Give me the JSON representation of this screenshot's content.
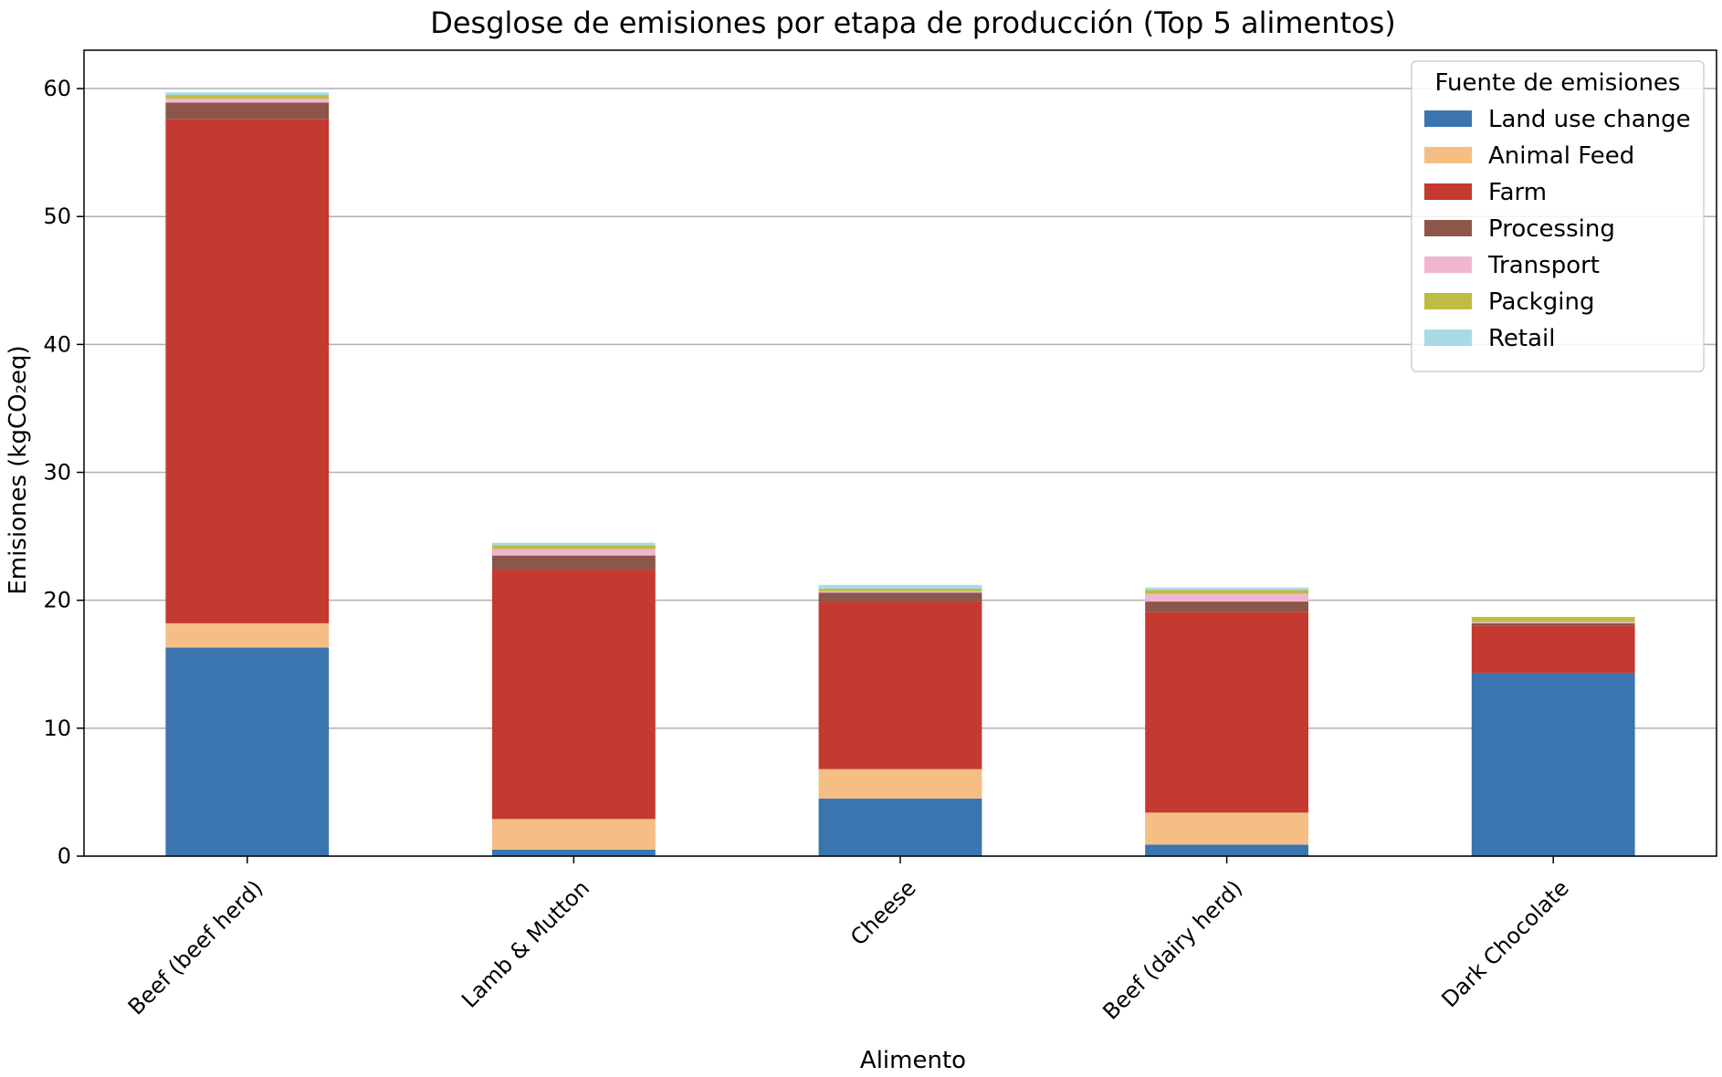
{
  "chart_data": {
    "type": "bar",
    "stacked": true,
    "title": "Desglose de emisiones por etapa de producción (Top 5 alimentos)",
    "xlabel": "Alimento",
    "ylabel": "Emisiones (kgCO₂eq)",
    "ylim": [
      0,
      63
    ],
    "yticks": [
      0,
      10,
      20,
      30,
      40,
      50,
      60
    ],
    "grid": "horizontal",
    "legend_title": "Fuente de emisiones",
    "legend_position": "top-right",
    "categories": [
      "Beef (beef herd)",
      "Lamb & Mutton",
      "Cheese",
      "Beef (dairy herd)",
      "Dark Chocolate"
    ],
    "series": [
      {
        "name": "Land use change",
        "color": "#3b75af",
        "values": [
          16.3,
          0.5,
          4.5,
          0.9,
          14.3
        ]
      },
      {
        "name": "Animal Feed",
        "color": "#f5be85",
        "values": [
          1.9,
          2.4,
          2.3,
          2.5,
          0.0
        ]
      },
      {
        "name": "Farm",
        "color": "#c43a31",
        "values": [
          39.4,
          19.5,
          13.1,
          15.7,
          3.7
        ]
      },
      {
        "name": "Processing",
        "color": "#8c564b",
        "values": [
          1.3,
          1.1,
          0.7,
          0.8,
          0.2
        ]
      },
      {
        "name": "Transport",
        "color": "#f0b6d0",
        "values": [
          0.3,
          0.5,
          0.1,
          0.6,
          0.1
        ]
      },
      {
        "name": "Packging",
        "color": "#bcbd42",
        "values": [
          0.3,
          0.3,
          0.2,
          0.3,
          0.4
        ]
      },
      {
        "name": "Retail",
        "color": "#a8dbe6",
        "values": [
          0.2,
          0.2,
          0.3,
          0.2,
          0.0
        ]
      }
    ]
  }
}
